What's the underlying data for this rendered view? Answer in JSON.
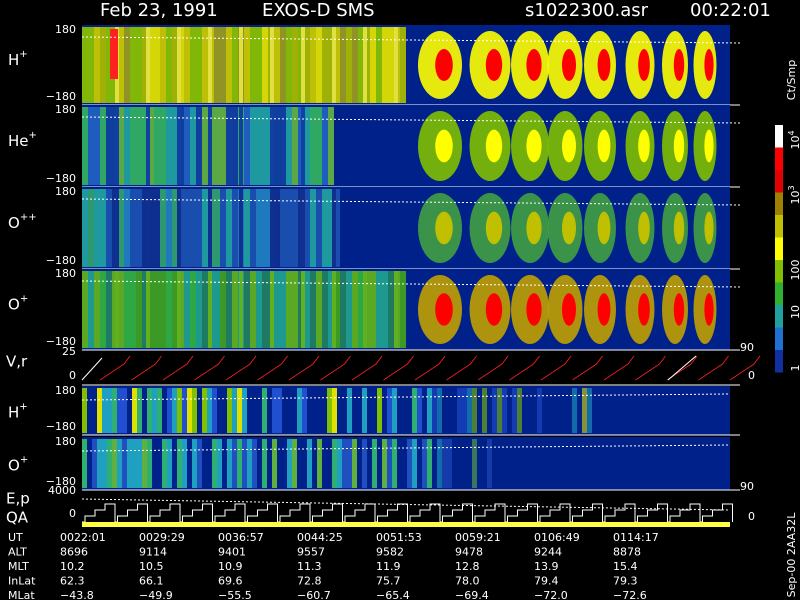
{
  "header": {
    "date": "Feb 23, 1991",
    "instrument": "EXOS-D SMS",
    "file": "s1022300.asr",
    "time": "00:22:01"
  },
  "panels": [
    {
      "label": "H",
      "sup": "+",
      "top": "180",
      "bottom": "−180"
    },
    {
      "label": "He",
      "sup": "+",
      "top": "180",
      "bottom": "−180"
    },
    {
      "label": "O",
      "sup": "++",
      "top": "180",
      "bottom": "−180"
    },
    {
      "label": "O",
      "sup": "+",
      "top": "180",
      "bottom": "−180"
    }
  ],
  "velocity": {
    "label": "V,r",
    "top": "25",
    "bottom": "0",
    "right_top": "90",
    "right_bottom": "0"
  },
  "lower_panels": [
    {
      "label": "H",
      "sup": "+",
      "top": "180",
      "bottom": "−180"
    },
    {
      "label": "O",
      "sup": "+",
      "top": "180",
      "bottom": "−180"
    }
  ],
  "energy": {
    "label": "E,p",
    "qa": "QA",
    "top": "4000",
    "bottom": "0",
    "right_top": "90",
    "right_bottom": "0"
  },
  "colorbar": {
    "title": "Ct/Smp",
    "labels": [
      {
        "base": "10",
        "exp": "4"
      },
      {
        "base": "10",
        "exp": "3"
      },
      {
        "base": "100",
        "exp": ""
      },
      {
        "base": "10",
        "exp": ""
      },
      {
        "base": "1",
        "exp": ""
      }
    ]
  },
  "footer": [
    {
      "name": "UT",
      "values": [
        "0022:01",
        "0029:29",
        "0036:57",
        "0044:25",
        "0051:53",
        "0059:21",
        "0106:49",
        "0114:17"
      ]
    },
    {
      "name": "ALT",
      "values": [
        "8696",
        "9114",
        "9401",
        "9557",
        "9582",
        "9478",
        "9244",
        "8878"
      ]
    },
    {
      "name": "MLT",
      "values": [
        "10.2",
        "10.5",
        "10.9",
        "11.3",
        "11.9",
        "12.8",
        "13.9",
        "15.4"
      ]
    },
    {
      "name": "InLat",
      "values": [
        "62.3",
        "66.1",
        "69.6",
        "72.8",
        "75.7",
        "78.0",
        "79.4",
        "79.3"
      ]
    },
    {
      "name": "MLat",
      "values": [
        "−43.8",
        "−49.9",
        "−55.5",
        "−60.7",
        "−65.4",
        "−69.4",
        "−72.0",
        "−72.6"
      ]
    }
  ],
  "side_label": "Sep-00 2AA32L"
}
